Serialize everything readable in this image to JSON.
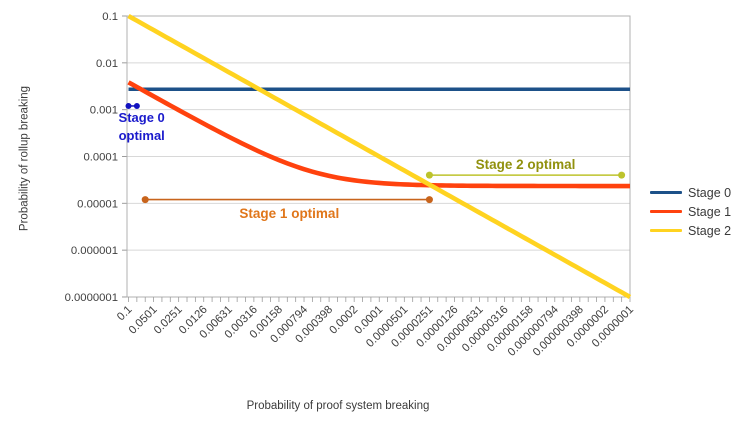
{
  "chart_data": {
    "type": "line",
    "title": "",
    "xlabel": "Probability of proof system breaking",
    "ylabel": "Probability of rollup breaking",
    "x_scale": "log",
    "y_scale": "log",
    "x_domain_left_to_right": [
      0.1,
      1e-07
    ],
    "y_domain_bottom_to_top": [
      1e-07,
      0.1
    ],
    "grid": "horizontal-major",
    "legend_position": "right",
    "x_tick_values": [
      0.1,
      0.0501,
      0.0251,
      0.0126,
      0.00631,
      0.00316,
      0.00158,
      0.000794,
      0.000398,
      0.0002,
      0.0001,
      5.01e-05,
      2.51e-05,
      1.26e-05,
      6.31e-06,
      3.16e-06,
      1.58e-06,
      7.94e-07,
      3.98e-07,
      2e-07,
      1e-07
    ],
    "x_tick_labels": [
      "0.1",
      "0.0501",
      "0.0251",
      "0.0126",
      "0.00631",
      "0.00316",
      "0.00158",
      "0.000794",
      "0.000398",
      "0.0002",
      "0.0001",
      "0.0000501",
      "0.0000251",
      "0.0000126",
      "0.00000631",
      "0.00000316",
      "0.00000158",
      "0.000000794",
      "0.000000398",
      "0.0000002",
      "0.0000001"
    ],
    "y_tick_labels": [
      "0.1",
      "0.01",
      "0.001",
      "0.0001",
      "0.00001",
      "0.000001",
      "0.0000001"
    ],
    "series": [
      {
        "name": "Stage 0",
        "color": "#1d5189",
        "type": "constant",
        "params": {
          "value": 0.002728
        },
        "values_at_ticks": [
          0.002728,
          0.002728,
          0.002728,
          0.002728,
          0.002728,
          0.002728,
          0.002728,
          0.002728,
          0.002728,
          0.002728,
          0.002728,
          0.002728,
          0.002728,
          0.002728,
          0.002728,
          0.002728,
          0.002728,
          0.002728,
          0.002728,
          0.002728,
          0.002728
        ]
      },
      {
        "name": "Stage 1",
        "color": "#ff420e",
        "type": "affine",
        "params": {
          "slope": 0.0381,
          "intercept": 2.34e-05
        },
        "values_at_ticks": [
          0.003833,
          0.001932,
          0.0009798,
          0.0005035,
          0.0002638,
          0.0001438,
          8.36e-05,
          5.365e-05,
          3.856e-05,
          3.102e-05,
          2.721e-05,
          2.531e-05,
          2.436e-05,
          2.388e-05,
          2.364e-05,
          2.352e-05,
          2.346e-05,
          2.343e-05,
          2.342e-05,
          2.341e-05,
          2.34e-05
        ]
      },
      {
        "name": "Stage 2",
        "color": "#ffd320",
        "type": "identity",
        "params": {},
        "values_at_ticks": [
          0.1,
          0.0501,
          0.0251,
          0.0126,
          0.00631,
          0.00316,
          0.00158,
          0.000794,
          0.000398,
          0.0002,
          0.0001,
          5.01e-05,
          2.51e-05,
          1.26e-05,
          6.31e-06,
          3.16e-06,
          1.58e-06,
          7.94e-07,
          3.98e-07,
          2e-07,
          1e-07
        ]
      }
    ],
    "annotations": [
      {
        "id": "stage0-optimal",
        "label": "Stage 0 optimal",
        "label_lines": [
          "Stage 0",
          "optimal"
        ],
        "text_color": "#1a1acc",
        "line_color": "#1212bf",
        "x_from": 0.1,
        "x_to": 0.0794,
        "y": 0.0012
      },
      {
        "id": "stage1-optimal",
        "label": "Stage 1 optimal",
        "text_color": "#e0761a",
        "line_color": "#c8641c",
        "x_from": 0.0631,
        "x_to": 2.51e-05,
        "y": 1.2e-05
      },
      {
        "id": "stage2-optimal",
        "label": "Stage 2 optimal",
        "text_color": "#91910e",
        "line_color": "#bdc32c",
        "x_from": 2.51e-05,
        "x_to": 1.26e-07,
        "y": 4e-05
      }
    ]
  }
}
